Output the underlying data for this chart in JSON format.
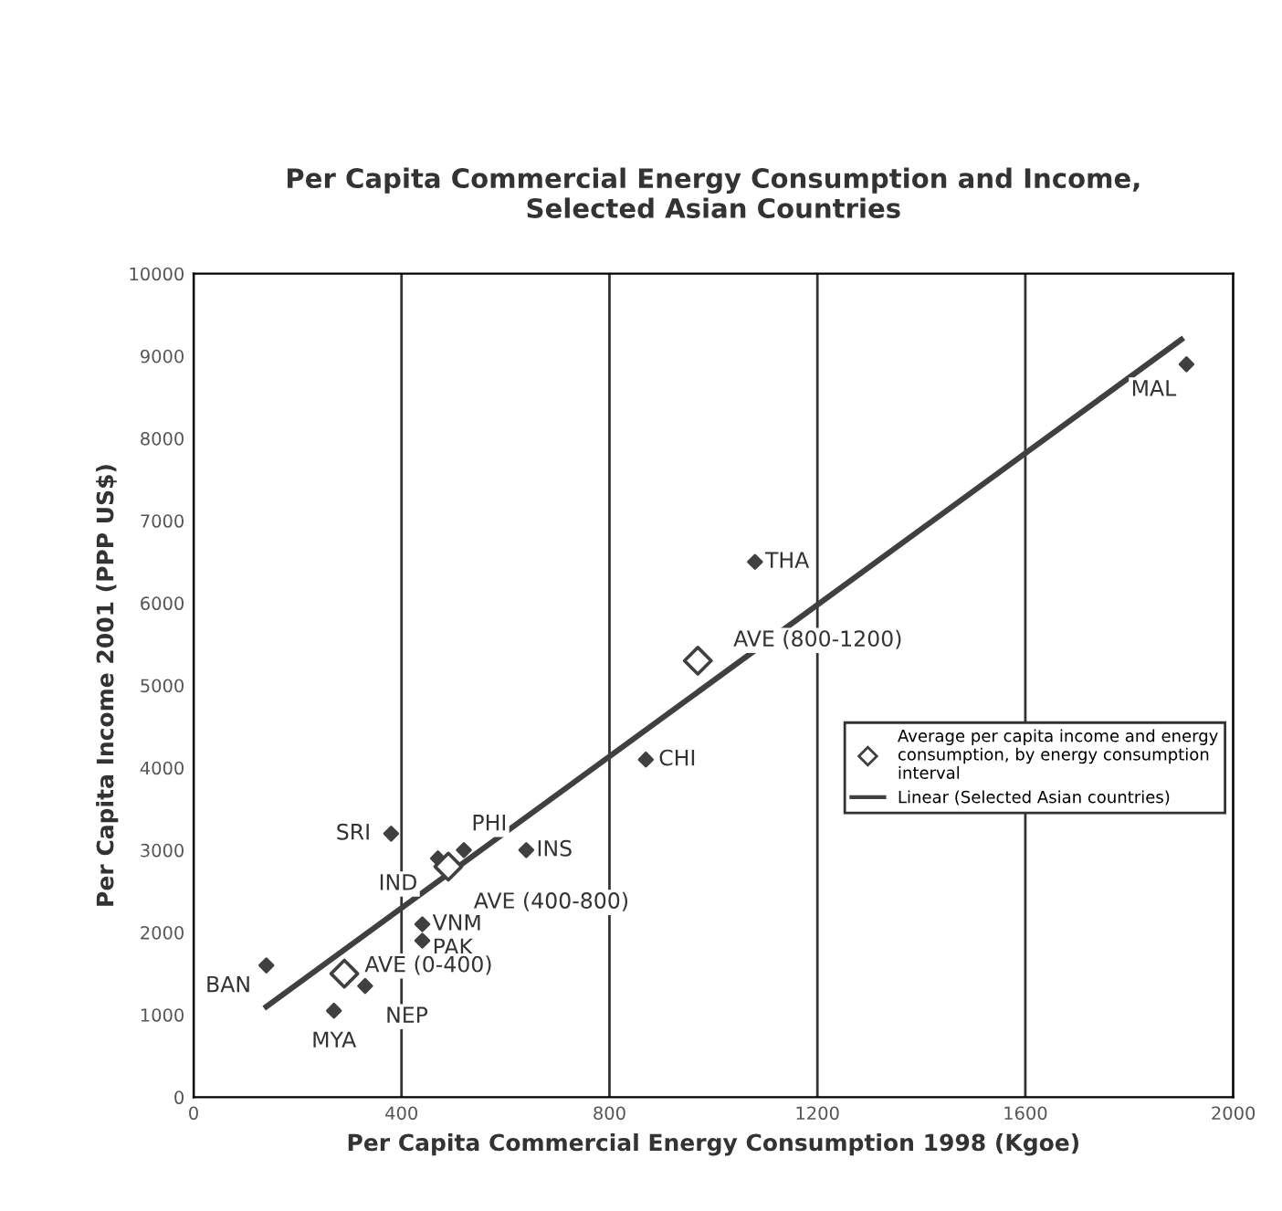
{
  "chart_data": {
    "type": "scatter",
    "title": "Per Capita Commercial Energy Consumption and Income,\nSelected Asian Countries",
    "xlabel": "Per Capita Commercial Energy Consumption 1998 (Kgoe)",
    "ylabel": "Per Capita Income 2001 (PPP US$)",
    "xlim": [
      0,
      2000
    ],
    "xticks": [
      0,
      400,
      800,
      1200,
      1600,
      2000
    ],
    "ylim": [
      0,
      10000
    ],
    "yticks": [
      0,
      1000,
      2000,
      3000,
      4000,
      5000,
      6000,
      7000,
      8000,
      9000,
      10000
    ],
    "grid": "x",
    "legend": "right",
    "series": [
      {
        "marker": "diamond",
        "color": "#404040",
        "x": [
          140,
          270,
          330,
          380,
          470,
          520,
          640,
          440,
          440,
          870,
          1080,
          1910
        ],
        "values": [
          1600,
          1050,
          1350,
          3200,
          2900,
          3000,
          3000,
          2100,
          1900,
          4100,
          6500,
          8900
        ]
      },
      {
        "marker": "diamond",
        "name": "Average per capita income and energy consumption, by energy consumption interval",
        "color": "#404040",
        "x": [
          290,
          490,
          970
        ],
        "values": [
          1500,
          2800,
          5300
        ]
      },
      {
        "type": "line",
        "name": "Linear (Selected Asian countries)",
        "color": "#404040",
        "x": [
          140,
          1900
        ],
        "values": [
          1100,
          9200
        ]
      }
    ],
    "annotations": [
      {
        "text": "BAN",
        "x": 140,
        "y": 1600
      },
      {
        "text": "MYA",
        "x": 270,
        "y": 1050
      },
      {
        "text": "NEP",
        "x": 330,
        "y": 1350
      },
      {
        "text": "SRI",
        "x": 380,
        "y": 3200
      },
      {
        "text": "IND",
        "x": 470,
        "y": 2900
      },
      {
        "text": "PHI",
        "x": 520,
        "y": 3000
      },
      {
        "text": "INS",
        "x": 640,
        "y": 3000
      },
      {
        "text": "VNM",
        "x": 440,
        "y": 2100
      },
      {
        "text": "PAK",
        "x": 440,
        "y": 1900
      },
      {
        "text": "CHI",
        "x": 870,
        "y": 4100
      },
      {
        "text": "THA",
        "x": 1080,
        "y": 6500
      },
      {
        "text": "MAL",
        "x": 1910,
        "y": 8900
      },
      {
        "text": "AVE (0-400)",
        "x": 290,
        "y": 1500
      },
      {
        "text": "AVE (400-800)",
        "x": 490,
        "y": 2800
      },
      {
        "text": "AVE (800-1200)",
        "x": 970,
        "y": 5300
      }
    ]
  }
}
